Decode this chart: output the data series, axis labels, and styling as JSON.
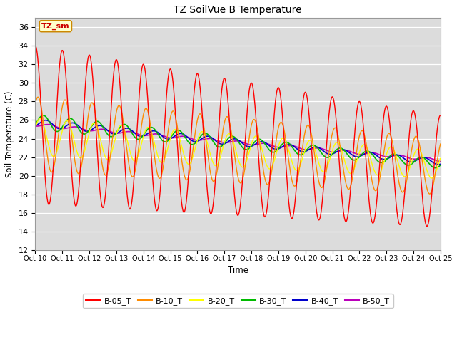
{
  "title": "TZ SoilVue B Temperature",
  "xlabel": "Time",
  "ylabel": "Soil Temperature (C)",
  "ylim": [
    12,
    37
  ],
  "yticks": [
    12,
    14,
    16,
    18,
    20,
    22,
    24,
    26,
    28,
    30,
    32,
    34,
    36
  ],
  "bg_color": "#dcdcdc",
  "series": {
    "B-05_T": {
      "color": "#ff0000",
      "lw": 1.0
    },
    "B-10_T": {
      "color": "#ff8c00",
      "lw": 1.0
    },
    "B-20_T": {
      "color": "#ffff00",
      "lw": 1.0
    },
    "B-30_T": {
      "color": "#00bb00",
      "lw": 1.2
    },
    "B-40_T": {
      "color": "#0000cc",
      "lw": 1.2
    },
    "B-50_T": {
      "color": "#bb00bb",
      "lw": 1.2
    }
  },
  "xtick_labels": [
    "Oct 10",
    "Oct 11",
    "Oct 12",
    "Oct 13",
    "Oct 14",
    "Oct 15",
    "Oct 16",
    "Oct 17",
    "Oct 18",
    "Oct 19",
    "Oct 20",
    "Oct 21",
    "Oct 22",
    "Oct 23",
    "Oct 24",
    "Oct 25"
  ],
  "annotation_text": "TZ_sm",
  "annotation_color": "#cc0000",
  "annotation_bg": "#ffffcc",
  "annotation_border": "#cc8800"
}
